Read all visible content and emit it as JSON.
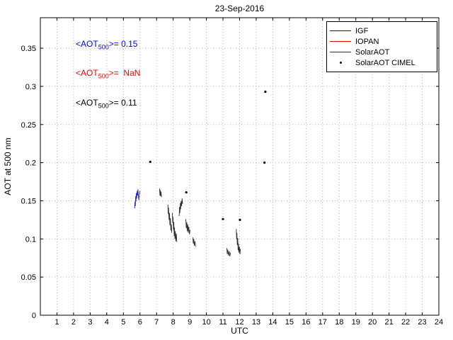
{
  "chart_data": {
    "type": "line",
    "title": "23-Sep-2016",
    "xlabel": "UTC",
    "ylabel": "AOT at 500 nm",
    "xlim": [
      0,
      24
    ],
    "ylim": [
      0,
      0.39
    ],
    "grid": true,
    "xticks": [
      1,
      2,
      3,
      4,
      5,
      6,
      7,
      8,
      9,
      10,
      11,
      12,
      13,
      14,
      15,
      16,
      17,
      18,
      19,
      20,
      21,
      22,
      23,
      24
    ],
    "xtick_labels": [
      "1",
      "2",
      "3",
      "4",
      "5",
      "6",
      "7",
      "8",
      "9",
      "10",
      "11",
      "12",
      "13",
      "14",
      "15",
      "16",
      "17",
      "18",
      "19",
      "20",
      "21",
      "22",
      "23",
      "24"
    ],
    "yticks": [
      0,
      0.05,
      0.1,
      0.15,
      0.2,
      0.25,
      0.3,
      0.35
    ],
    "ytick_labels": [
      "0",
      "0.05",
      "0.1",
      "0.15",
      "0.2",
      "0.25",
      "0.3",
      "0.35"
    ],
    "legend": {
      "position": "top-right",
      "entries": [
        {
          "label": "IGF",
          "color": "#0000dd",
          "marker": "line"
        },
        {
          "label": "IOPAN",
          "color": "#ee0000",
          "marker": "line"
        },
        {
          "label": "SolarAOT",
          "color": "#303030",
          "marker": "line"
        },
        {
          "label": "SolarAOT CIMEL",
          "color": "#000000",
          "marker": "dot"
        }
      ]
    },
    "annotations": [
      {
        "prefix": "<AOT",
        "sub": "500",
        "suffix": ">= 0.15",
        "color": "#0000ff",
        "x": 2.15,
        "y": 0.355
      },
      {
        "prefix": "<AOT",
        "sub": "500",
        "suffix": ">=  NaN",
        "color": "#ff0000",
        "x": 2.15,
        "y": 0.317
      },
      {
        "prefix": "<AOT",
        "sub": "500",
        "suffix": ">= 0.11",
        "color": "#000000",
        "x": 2.15,
        "y": 0.278
      }
    ],
    "series": [
      {
        "name": "IGF",
        "type": "line",
        "color": "#2222cc",
        "segments": [
          [
            [
              5.68,
              0.14
            ],
            [
              5.7,
              0.149
            ],
            [
              5.72,
              0.143
            ],
            [
              5.74,
              0.156
            ],
            [
              5.76,
              0.149
            ],
            [
              5.78,
              0.16
            ],
            [
              5.8,
              0.153
            ],
            [
              5.83,
              0.163
            ],
            [
              5.86,
              0.157
            ],
            [
              5.88,
              0.165
            ],
            [
              5.9,
              0.158
            ],
            [
              5.93,
              0.151
            ],
            [
              5.96,
              0.157
            ],
            [
              6.0,
              0.163
            ]
          ]
        ]
      },
      {
        "name": "IOPAN",
        "type": "line",
        "color": "#ee0000",
        "segments": []
      },
      {
        "name": "SolarAOT",
        "type": "line",
        "color": "#303030",
        "segments": [
          [
            [
              7.18,
              0.166
            ],
            [
              7.2,
              0.157
            ],
            [
              7.22,
              0.164
            ],
            [
              7.24,
              0.156
            ],
            [
              7.27,
              0.162
            ],
            [
              7.3,
              0.155
            ]
          ],
          [
            [
              7.68,
              0.145
            ],
            [
              7.7,
              0.133
            ],
            [
              7.72,
              0.141
            ],
            [
              7.75,
              0.125
            ],
            [
              7.78,
              0.134
            ],
            [
              7.8,
              0.118
            ],
            [
              7.83,
              0.127
            ],
            [
              7.86,
              0.111
            ],
            [
              7.89,
              0.119
            ],
            [
              7.91,
              0.108
            ]
          ],
          [
            [
              7.95,
              0.134
            ],
            [
              7.97,
              0.121
            ],
            [
              7.99,
              0.129
            ],
            [
              8.02,
              0.112
            ],
            [
              8.04,
              0.122
            ],
            [
              8.06,
              0.104
            ],
            [
              8.08,
              0.115
            ],
            [
              8.11,
              0.1
            ],
            [
              8.13,
              0.11
            ],
            [
              8.16,
              0.097
            ],
            [
              8.19,
              0.107
            ],
            [
              8.22,
              0.096
            ]
          ],
          [
            [
              8.36,
              0.13
            ],
            [
              8.38,
              0.142
            ],
            [
              8.4,
              0.134
            ],
            [
              8.43,
              0.147
            ],
            [
              8.45,
              0.139
            ],
            [
              8.48,
              0.15
            ],
            [
              8.51,
              0.143
            ],
            [
              8.54,
              0.153
            ],
            [
              8.57,
              0.146
            ]
          ],
          [
            [
              8.76,
              0.126
            ],
            [
              8.79,
              0.114
            ],
            [
              8.82,
              0.122
            ],
            [
              8.85,
              0.11
            ],
            [
              8.88,
              0.119
            ],
            [
              8.91,
              0.108
            ],
            [
              8.94,
              0.116
            ],
            [
              8.98,
              0.106
            ],
            [
              9.02,
              0.112
            ]
          ],
          [
            [
              9.18,
              0.102
            ],
            [
              9.21,
              0.094
            ],
            [
              9.24,
              0.1
            ],
            [
              9.27,
              0.091
            ],
            [
              9.31,
              0.097
            ],
            [
              9.35,
              0.09
            ]
          ],
          [
            [
              11.23,
              0.088
            ],
            [
              11.26,
              0.08
            ],
            [
              11.29,
              0.086
            ],
            [
              11.33,
              0.078
            ],
            [
              11.37,
              0.084
            ],
            [
              11.41,
              0.077
            ],
            [
              11.45,
              0.082
            ]
          ],
          [
            [
              11.8,
              0.113
            ],
            [
              11.82,
              0.1
            ],
            [
              11.84,
              0.108
            ],
            [
              11.86,
              0.092
            ],
            [
              11.89,
              0.101
            ],
            [
              11.91,
              0.085
            ],
            [
              11.93,
              0.094
            ],
            [
              11.96,
              0.082
            ],
            [
              11.99,
              0.09
            ],
            [
              12.02,
              0.08
            ],
            [
              12.05,
              0.087
            ]
          ]
        ]
      },
      {
        "name": "SolarAOT CIMEL",
        "type": "scatter",
        "color": "#000000",
        "points": [
          [
            6.62,
            0.201
          ],
          [
            8.79,
            0.161
          ],
          [
            11.0,
            0.126
          ],
          [
            12.02,
            0.125
          ],
          [
            13.5,
            0.2
          ],
          [
            13.55,
            0.293
          ]
        ]
      }
    ]
  }
}
